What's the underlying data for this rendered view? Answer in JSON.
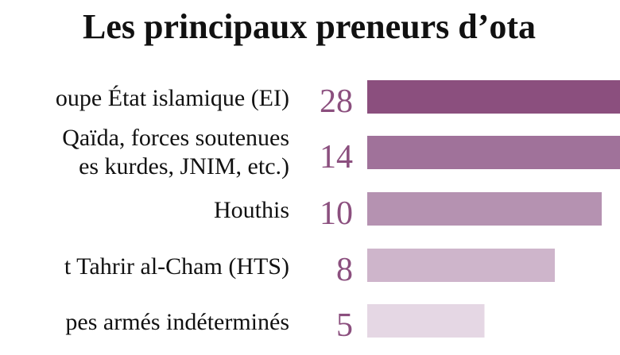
{
  "chart_data": {
    "type": "bar",
    "orientation": "horizontal",
    "title": "Les principaux preneurs d’ota",
    "categories": [
      [
        "oupe État islamique (EI)"
      ],
      [
        "Qaïda, forces soutenues",
        "es kurdes, JNIM, etc.)"
      ],
      [
        "Houthis"
      ],
      [
        "t Tahrir al-Cham (HTS)"
      ],
      [
        "pes armés indéterminés"
      ]
    ],
    "values": [
      28,
      14,
      10,
      8,
      5
    ],
    "bar_colors": [
      "#8b4f7e",
      "#a0729a",
      "#b592b1",
      "#ceb5cb",
      "#e5d7e4"
    ],
    "value_label_color": "#8b4f7e",
    "grid": false,
    "legend": "none"
  }
}
